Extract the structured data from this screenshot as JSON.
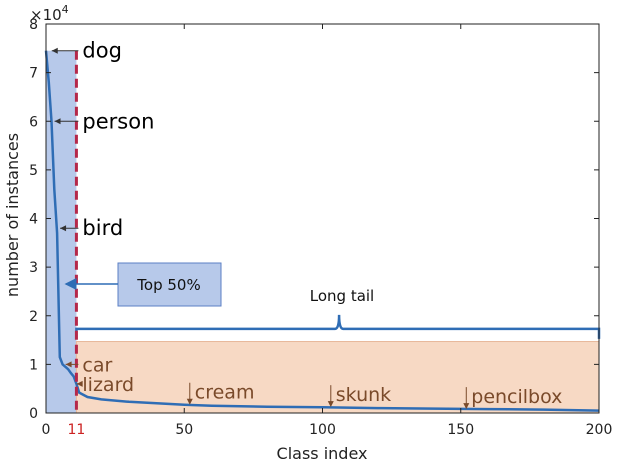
{
  "chart_data": {
    "type": "line",
    "title": "",
    "xlabel": "Class index",
    "ylabel": "number of instances",
    "y_exponent_label": "×10",
    "y_exponent_power": "4",
    "xlim": [
      0,
      200
    ],
    "ylim": [
      0,
      8
    ],
    "y_scale_factor": 10000,
    "xticks": [
      0,
      50,
      100,
      150,
      200
    ],
    "yticks": [
      0,
      1,
      2,
      3,
      4,
      5,
      6,
      7,
      8
    ],
    "highlight_tick": "11",
    "highlight_tick_color": "#cc2222",
    "grid": false,
    "series": [
      {
        "color": "#2f6db5",
        "x": [
          0,
          1,
          2,
          3,
          4,
          5,
          6,
          7,
          8,
          9,
          10,
          11,
          12,
          15,
          20,
          30,
          40,
          50,
          60,
          80,
          100,
          120,
          140,
          160,
          180,
          200
        ],
        "values": [
          7.45,
          6.8,
          6.0,
          4.6,
          3.7,
          1.15,
          1.0,
          0.95,
          0.9,
          0.82,
          0.75,
          0.6,
          0.42,
          0.33,
          0.28,
          0.23,
          0.2,
          0.17,
          0.15,
          0.13,
          0.12,
          0.1,
          0.09,
          0.08,
          0.07,
          0.05
        ]
      }
    ],
    "annotations": [
      {
        "text": "dog",
        "x": 1,
        "y": 7.45,
        "color": "#000000"
      },
      {
        "text": "person",
        "x": 2,
        "y": 6.0,
        "color": "#000000"
      },
      {
        "text": "bird",
        "x": 4,
        "y": 3.8,
        "color": "#000000"
      },
      {
        "text": "car",
        "x": 6,
        "y": 1.0,
        "color": "#7a4a2a"
      },
      {
        "text": "lizard",
        "x": 10,
        "y": 0.6,
        "color": "#7a4a2a"
      },
      {
        "text": "cream",
        "x": 52,
        "y": 0.17,
        "color": "#7a4a2a"
      },
      {
        "text": "skunk",
        "x": 103,
        "y": 0.12,
        "color": "#7a4a2a"
      },
      {
        "text": "pencilbox",
        "x": 152,
        "y": 0.08,
        "color": "#7a4a2a"
      }
    ],
    "regions": {
      "head": {
        "label": "Top 50%",
        "x_start": 0,
        "x_end": 11,
        "fill": "#b7c9ea"
      },
      "tail": {
        "label": "Long tail",
        "x_start": 11,
        "x_end": 200,
        "fill": "#f7d9c4"
      }
    },
    "divider_color": "#b5284a",
    "colors": {
      "brace": "#2f6db5",
      "arrow": "#2f6db5"
    }
  }
}
